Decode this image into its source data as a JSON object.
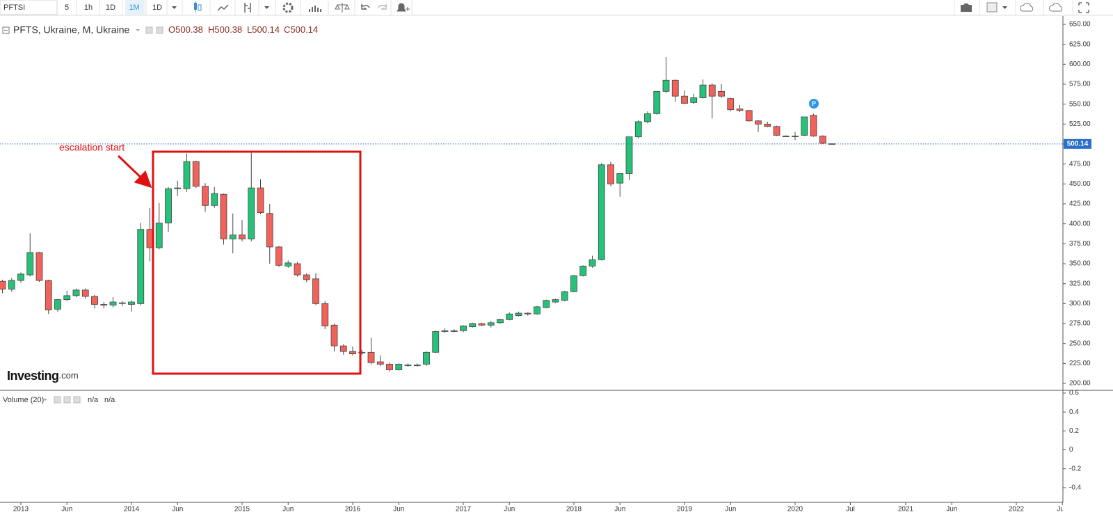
{
  "toolbar": {
    "symbol": "PFTSI",
    "intervals": [
      "5",
      "1h",
      "1D",
      "1M",
      "1D"
    ],
    "active_interval": 3
  },
  "logo": {
    "name": "Investing",
    "suffix": ".com"
  },
  "chart_data": [
    {
      "type": "candlestick",
      "title": "PFTS, Ukraine, M, Ukraine",
      "ohlc_prefixes": [
        "O",
        "H",
        "L",
        "C"
      ],
      "x": [
        "2012-11",
        "2012-12",
        "2013-01",
        "2013-02",
        "2013-03",
        "2013-04",
        "2013-05",
        "2013-06",
        "2013-07",
        "2013-08",
        "2013-09",
        "2013-10",
        "2013-11",
        "2013-12",
        "2014-01",
        "2014-02",
        "2014-03",
        "2014-04",
        "2014-05",
        "2014-06",
        "2014-07",
        "2014-08",
        "2014-09",
        "2014-10",
        "2014-11",
        "2014-12",
        "2015-01",
        "2015-02",
        "2015-03",
        "2015-04",
        "2015-05",
        "2015-06",
        "2015-07",
        "2015-08",
        "2015-09",
        "2015-10",
        "2015-11",
        "2015-12",
        "2016-01",
        "2016-02",
        "2016-03",
        "2016-04",
        "2016-05",
        "2016-06",
        "2016-07",
        "2016-08",
        "2016-09",
        "2016-10",
        "2016-11",
        "2016-12",
        "2017-01",
        "2017-02",
        "2017-03",
        "2017-04",
        "2017-05",
        "2017-06",
        "2017-07",
        "2017-08",
        "2017-09",
        "2017-10",
        "2017-11",
        "2017-12",
        "2018-01",
        "2018-02",
        "2018-03",
        "2018-04",
        "2018-05",
        "2018-06",
        "2018-07",
        "2018-08",
        "2018-09",
        "2018-10",
        "2018-11",
        "2018-12",
        "2019-01",
        "2019-02",
        "2019-03",
        "2019-04",
        "2019-05",
        "2019-06",
        "2019-07",
        "2019-08",
        "2019-09",
        "2019-10",
        "2019-11",
        "2019-12",
        "2020-01",
        "2020-02",
        "2020-03",
        "2020-04",
        "2020-05"
      ],
      "open": [
        328,
        318,
        329,
        336,
        364,
        329,
        293,
        305,
        310,
        317,
        309,
        299,
        298,
        301,
        299,
        300,
        393,
        370,
        401,
        444,
        444,
        478,
        447,
        423,
        437,
        381,
        386,
        381,
        445,
        413,
        371,
        347,
        350,
        336,
        331,
        300,
        273,
        247,
        240,
        239,
        239,
        227,
        224,
        217,
        223,
        223,
        224,
        239,
        265,
        266,
        266,
        271,
        275,
        273,
        276,
        280,
        285,
        288,
        287,
        295,
        302,
        304,
        315,
        335,
        347,
        355,
        474,
        451,
        463,
        509,
        528,
        538,
        566,
        580,
        560,
        552,
        558,
        574,
        566,
        557,
        544,
        542,
        529,
        525,
        522,
        510,
        510,
        511,
        536,
        510,
        500.38
      ],
      "high": [
        330,
        332,
        339,
        388,
        365,
        330,
        306,
        316,
        319,
        319,
        311,
        302,
        308,
        303,
        304,
        401,
        420,
        426,
        446,
        454,
        488,
        479,
        451,
        446,
        438,
        413,
        405,
        489,
        456,
        425,
        372,
        354,
        352,
        338,
        338,
        303,
        275,
        249,
        246,
        242,
        257,
        235,
        226,
        225,
        225,
        225,
        240,
        266,
        269,
        268,
        273,
        276,
        276,
        278,
        281,
        289,
        290,
        289,
        297,
        305,
        306,
        316,
        336,
        348,
        360,
        476,
        478,
        463,
        509,
        530,
        541,
        566,
        609,
        581,
        567,
        563,
        581,
        576,
        575,
        558,
        549,
        543,
        530,
        528,
        523,
        511,
        515,
        534,
        538,
        511,
        500.38
      ],
      "low": [
        313,
        315,
        326,
        334,
        327,
        287,
        290,
        303,
        308,
        306,
        294,
        294,
        295,
        297,
        290,
        298,
        353,
        368,
        390,
        435,
        440,
        445,
        415,
        420,
        374,
        363,
        378,
        378,
        412,
        350,
        346,
        345,
        334,
        327,
        298,
        268,
        240,
        236,
        235,
        236,
        224,
        222,
        215,
        216,
        221,
        221,
        222,
        238,
        263,
        264,
        264,
        270,
        272,
        270,
        275,
        279,
        284,
        285,
        286,
        294,
        301,
        303,
        314,
        334,
        345,
        354,
        447,
        434,
        455,
        507,
        526,
        537,
        564,
        553,
        550,
        550,
        557,
        532,
        558,
        541,
        540,
        528,
        515,
        521,
        510,
        509,
        505,
        510,
        509,
        500,
        500.14
      ],
      "close": [
        318,
        329,
        337,
        364,
        329,
        292,
        305,
        310,
        317,
        309,
        299,
        298,
        302,
        301,
        302,
        393,
        370,
        401,
        444,
        445,
        478,
        447,
        423,
        438,
        381,
        386,
        381,
        445,
        414,
        371,
        348,
        351,
        336,
        330,
        300,
        272,
        247,
        240,
        237,
        239,
        226,
        224,
        217,
        224,
        223,
        223,
        239,
        265,
        266,
        265,
        272,
        275,
        273,
        276,
        280,
        287,
        288,
        287,
        296,
        304,
        305,
        315,
        335,
        347,
        355,
        474,
        450,
        463,
        509,
        528,
        538,
        566,
        580,
        560,
        551,
        558,
        574,
        560,
        560,
        543,
        542,
        529,
        525,
        522,
        511,
        510,
        510,
        534,
        510,
        501,
        500.14
      ],
      "up_color": "#26c27a",
      "down_color": "#f0625a",
      "last_price_color": "#2a6fc9",
      "xlim": [
        "2012-10",
        "2022-06"
      ],
      "xticks": [
        {
          "value": "2013-01",
          "label": "2013"
        },
        {
          "value": "2013-06",
          "label": "Jun"
        },
        {
          "value": "2014-01",
          "label": "2014"
        },
        {
          "value": "2014-06",
          "label": "Jun"
        },
        {
          "value": "2015-01",
          "label": "2015"
        },
        {
          "value": "2015-06",
          "label": "Jun"
        },
        {
          "value": "2016-01",
          "label": "2016"
        },
        {
          "value": "2016-06",
          "label": "Jun"
        },
        {
          "value": "2017-01",
          "label": "2017"
        },
        {
          "value": "2017-06",
          "label": "Jun"
        },
        {
          "value": "2018-01",
          "label": "2018"
        },
        {
          "value": "2018-06",
          "label": "Jun"
        },
        {
          "value": "2019-01",
          "label": "2019"
        },
        {
          "value": "2019-06",
          "label": "Jun"
        },
        {
          "value": "2020-01",
          "label": "2020"
        },
        {
          "value": "2020-07",
          "label": "Jul"
        },
        {
          "value": "2021-01",
          "label": "2021"
        },
        {
          "value": "2021-06",
          "label": "Jun"
        },
        {
          "value": "2022-01",
          "label": "2022"
        },
        {
          "value": "2022-06",
          "label": "Jun"
        }
      ],
      "ylim": [
        191.3,
        656.1
      ],
      "yticks": [
        {
          "value": 200,
          "label": "200.00"
        },
        {
          "value": 225,
          "label": "225.00"
        },
        {
          "value": 250,
          "label": "250.00"
        },
        {
          "value": 275,
          "label": "275.00"
        },
        {
          "value": 300,
          "label": "300.00"
        },
        {
          "value": 325,
          "label": "325.00"
        },
        {
          "value": 350,
          "label": "350.00"
        },
        {
          "value": 375,
          "label": "375.00"
        },
        {
          "value": 400,
          "label": "400.00"
        },
        {
          "value": 425,
          "label": "425.00"
        },
        {
          "value": 450,
          "label": "450.00"
        },
        {
          "value": 475,
          "label": "475.00"
        },
        {
          "value": 500,
          "label": "500.00"
        },
        {
          "value": 525,
          "label": "525.00"
        },
        {
          "value": 550,
          "label": "550.00"
        },
        {
          "value": 575,
          "label": "575.00"
        },
        {
          "value": 600,
          "label": "600.00"
        },
        {
          "value": 625,
          "label": "625.00"
        },
        {
          "value": 650,
          "label": "650.00"
        }
      ],
      "annotation": "escalation start",
      "marker_label": "P"
    },
    {
      "type": "volume",
      "title": "Volume (20)",
      "legend_values": [
        "n/a",
        "n/a"
      ],
      "ylim": [
        -0.555,
        0.622
      ],
      "yticks": [
        0.6,
        0.4,
        0.2,
        0,
        -0.2,
        -0.4
      ]
    }
  ]
}
